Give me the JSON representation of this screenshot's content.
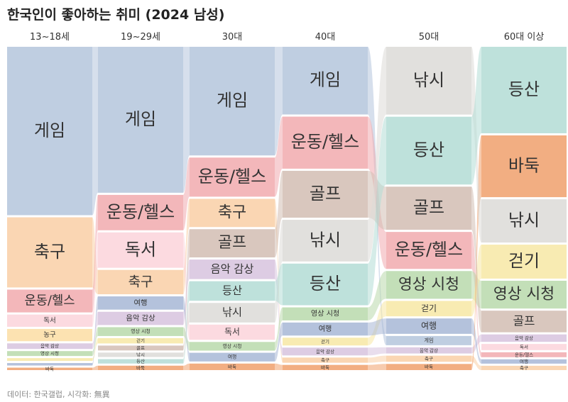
{
  "title": "한국인이 좋아하는 취미 (2024 남성)",
  "source": "데이터: 한국갤럽, 시각화: 無異",
  "chart_data": {
    "type": "sankey",
    "title": "한국인이 좋아하는 취미 (2024 남성)",
    "columns": [
      "13~18세",
      "19~29세",
      "30대",
      "40대",
      "50대",
      "60대 이상"
    ],
    "colors": {
      "게임": "#b4c5dc",
      "축구": "#f9cfa6",
      "운동/헬스": "#f1aaae",
      "독서": "#fbd3db",
      "농구": "#fbdda3",
      "음악 감상": "#d7c3de",
      "영상 시청": "#b9d9ac",
      "걷기": "#f7e8a4",
      "골프": "#d2bdb3",
      "낚시": "#dcdad7",
      "등산": "#b3dcd5",
      "바둑": "#f0a06c",
      "여행": "#a7b7d6"
    },
    "stacks": [
      [
        {
          "name": "게임",
          "label": "게임",
          "value": 48
        },
        {
          "name": "축구",
          "label": "축구",
          "value": 20
        },
        {
          "name": "운동/헬스",
          "label": "운동/헬스",
          "value": 6.5
        },
        {
          "name": "독서",
          "label": "독서",
          "value": 3.5
        },
        {
          "name": "농구",
          "label": "농구",
          "value": 3.5
        },
        {
          "name": "음악 감상",
          "label": "음악 감상",
          "value": 1.6
        },
        {
          "name": "영상 시청",
          "label": "영상 시청",
          "value": 1.4
        },
        {
          "name": "걷기",
          "label": "",
          "value": 0.8
        },
        {
          "name": "여행",
          "label": "",
          "value": 0.7
        },
        {
          "name": "바둑",
          "label": "바둑",
          "value": 0.7
        }
      ],
      [
        {
          "name": "게임",
          "label": "게임",
          "value": 33
        },
        {
          "name": "운동/헬스",
          "label": "운동/헬스",
          "value": 8
        },
        {
          "name": "독서",
          "label": "독서",
          "value": 8
        },
        {
          "name": "축구",
          "label": "축구",
          "value": 5.5
        },
        {
          "name": "여행",
          "label": "여행",
          "value": 3
        },
        {
          "name": "음악 감상",
          "label": "음악 감상",
          "value": 3
        },
        {
          "name": "영상 시청",
          "label": "영상 시청",
          "value": 2
        },
        {
          "name": "걷기",
          "label": "걷기",
          "value": 1.2
        },
        {
          "name": "골프",
          "label": "골프",
          "value": 1.1
        },
        {
          "name": "낚시",
          "label": "낚시",
          "value": 1
        },
        {
          "name": "등산",
          "label": "등산",
          "value": 1
        },
        {
          "name": "바둑",
          "label": "바둑",
          "value": 1
        }
      ],
      [
        {
          "name": "게임",
          "label": "게임",
          "value": 25
        },
        {
          "name": "운동/헬스",
          "label": "운동/헬스",
          "value": 9
        },
        {
          "name": "축구",
          "label": "축구",
          "value": 6.5
        },
        {
          "name": "골프",
          "label": "골프",
          "value": 6.5
        },
        {
          "name": "음악 감상",
          "label": "음악 감상",
          "value": 4.5
        },
        {
          "name": "등산",
          "label": "등산",
          "value": 4.5
        },
        {
          "name": "낚시",
          "label": "낚시",
          "value": 4.5
        },
        {
          "name": "독서",
          "label": "독서",
          "value": 3.5
        },
        {
          "name": "영상 시청",
          "label": "영상 시청",
          "value": 2
        },
        {
          "name": "여행",
          "label": "여행",
          "value": 2
        },
        {
          "name": "바둑",
          "label": "바둑",
          "value": 1.5
        }
      ],
      [
        {
          "name": "게임",
          "label": "게임",
          "value": 13
        },
        {
          "name": "운동/헬스",
          "label": "운동/헬스",
          "value": 10
        },
        {
          "name": "골프",
          "label": "골프",
          "value": 9
        },
        {
          "name": "낚시",
          "label": "낚시",
          "value": 8
        },
        {
          "name": "등산",
          "label": "등산",
          "value": 8
        },
        {
          "name": "영상 시청",
          "label": "영상 시청",
          "value": 2.5
        },
        {
          "name": "여행",
          "label": "여행",
          "value": 2.5
        },
        {
          "name": "걷기",
          "label": "걷기",
          "value": 1.5
        },
        {
          "name": "음악 감상",
          "label": "음악 감상",
          "value": 1.5
        },
        {
          "name": "축구",
          "label": "축구",
          "value": 1
        },
        {
          "name": "바둑",
          "label": "바둑",
          "value": 1
        }
      ],
      [
        {
          "name": "낚시",
          "label": "낚시",
          "value": 11
        },
        {
          "name": "등산",
          "label": "등산",
          "value": 11
        },
        {
          "name": "골프",
          "label": "골프",
          "value": 7
        },
        {
          "name": "운동/헬스",
          "label": "운동/헬스",
          "value": 6
        },
        {
          "name": "영상 시청",
          "label": "영상 시청",
          "value": 4.5
        },
        {
          "name": "걷기",
          "label": "걷기",
          "value": 2.5
        },
        {
          "name": "여행",
          "label": "여행",
          "value": 2.5
        },
        {
          "name": "게임",
          "label": "게임",
          "value": 1.5
        },
        {
          "name": "음악 감상",
          "label": "음악 감상",
          "value": 1
        },
        {
          "name": "축구",
          "label": "축구",
          "value": 1
        },
        {
          "name": "바둑",
          "label": "바둑",
          "value": 1
        }
      ],
      [
        {
          "name": "등산",
          "label": "등산",
          "value": 14
        },
        {
          "name": "바둑",
          "label": "바둑",
          "value": 10
        },
        {
          "name": "낚시",
          "label": "낚시",
          "value": 7
        },
        {
          "name": "걷기",
          "label": "걷기",
          "value": 5.5
        },
        {
          "name": "영상 시청",
          "label": "영상 시청",
          "value": 4.5
        },
        {
          "name": "골프",
          "label": "골프",
          "value": 3.5
        },
        {
          "name": "음악 감상",
          "label": "음악 감상",
          "value": 1.2
        },
        {
          "name": "독서",
          "label": "독서",
          "value": 1
        },
        {
          "name": "운동/헬스",
          "label": "운동/헬스",
          "value": 0.8
        },
        {
          "name": "여행",
          "label": "여행",
          "value": 0.7
        },
        {
          "name": "축구",
          "label": "축구",
          "value": 0.7
        }
      ]
    ]
  }
}
